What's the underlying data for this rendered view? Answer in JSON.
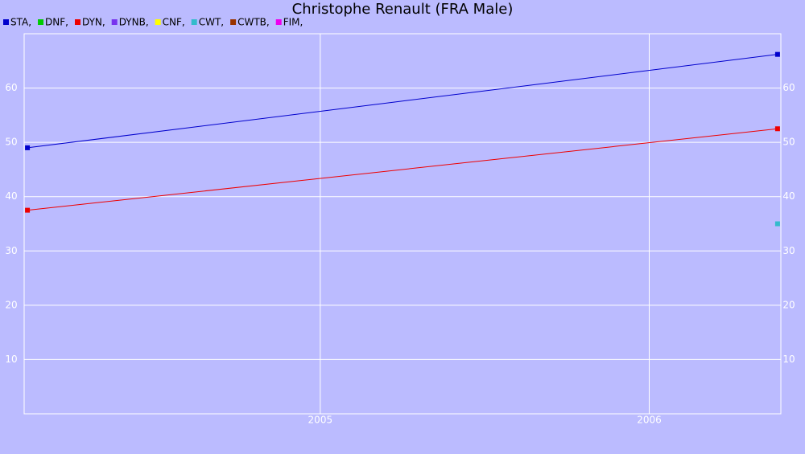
{
  "chart_data": {
    "type": "line",
    "title": "Christophe Renault (FRA Male)",
    "x": [
      2004.11,
      2006.39
    ],
    "series": [
      {
        "name": "STA,",
        "color": "#0000cc",
        "values": [
          49,
          66.2
        ]
      },
      {
        "name": "DNF,",
        "color": "#00cc00",
        "values": [
          null,
          null
        ]
      },
      {
        "name": "DYN,",
        "color": "#ee0000",
        "values": [
          37.5,
          52.5
        ]
      },
      {
        "name": "DYNB,",
        "color": "#7733ee",
        "values": [
          null,
          null
        ]
      },
      {
        "name": "CNF,",
        "color": "#ffff00",
        "values": [
          null,
          null
        ]
      },
      {
        "name": "CWT,",
        "color": "#33bbcc",
        "values": [
          null,
          35
        ]
      },
      {
        "name": "CWTB,",
        "color": "#993300",
        "values": [
          null,
          null
        ]
      },
      {
        "name": "FIM,",
        "color": "#ee00ee",
        "values": [
          null,
          null
        ]
      }
    ],
    "xlim": [
      2004.1,
      2006.4
    ],
    "xticks": [
      2005,
      2006
    ],
    "ylim": [
      0,
      70
    ],
    "yticks": [
      10,
      20,
      30,
      40,
      50,
      60
    ],
    "grid": true
  }
}
